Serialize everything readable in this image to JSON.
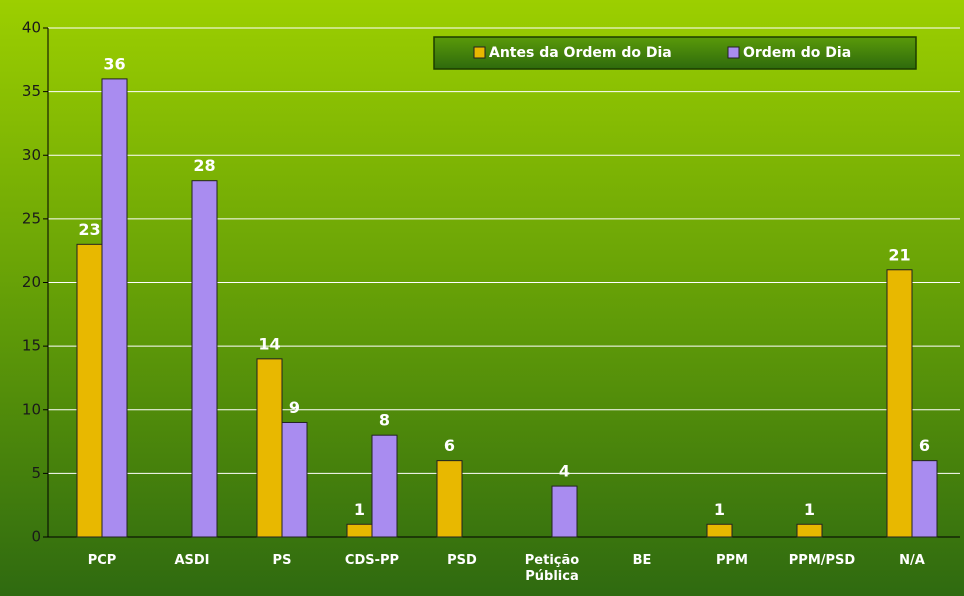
{
  "chart_data": {
    "type": "bar",
    "categories": [
      "PCP",
      "ASDI",
      "PS",
      "CDS-PP",
      "PSD",
      "Petição Pública",
      "BE",
      "PPM",
      "PPM/PSD",
      "N/A"
    ],
    "series": [
      {
        "name": "Antes da Ordem do Dia",
        "color": "#e8b800",
        "values": [
          23,
          null,
          14,
          1,
          6,
          null,
          null,
          1,
          1,
          21
        ]
      },
      {
        "name": "Ordem do Dia",
        "color": "#a98cf0",
        "values": [
          36,
          28,
          9,
          8,
          null,
          4,
          null,
          null,
          null,
          6
        ]
      }
    ],
    "ylim": [
      0,
      40
    ],
    "yticks": [
      0,
      5,
      10,
      15,
      20,
      25,
      30,
      35,
      40
    ],
    "grid": true,
    "legend": "top-right"
  }
}
